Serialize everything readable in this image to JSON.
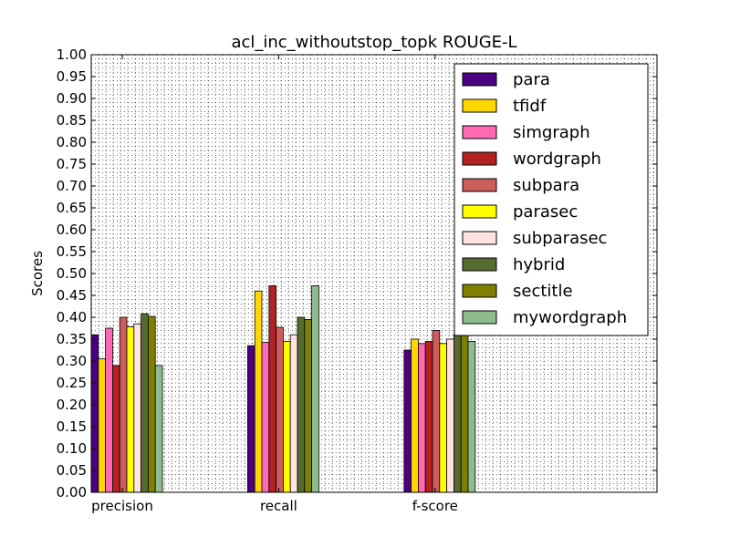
{
  "chart_data": {
    "type": "bar",
    "title": "acl_inc_withoutstop_topk ROUGE-L",
    "xlabel": "",
    "ylabel": "Scores",
    "ylim": [
      0,
      1.0
    ],
    "yticks": [
      "0.00",
      "0.05",
      "0.10",
      "0.15",
      "0.20",
      "0.25",
      "0.30",
      "0.35",
      "0.40",
      "0.45",
      "0.50",
      "0.55",
      "0.60",
      "0.65",
      "0.70",
      "0.75",
      "0.80",
      "0.85",
      "0.90",
      "0.95",
      "1.00"
    ],
    "categories": [
      "precision",
      "recall",
      "f-score"
    ],
    "grid": "on (dotted)",
    "legend_position": "top-right",
    "series": [
      {
        "name": "para",
        "color": "#4b0082",
        "values": [
          0.36,
          0.335,
          0.325
        ]
      },
      {
        "name": "tfidf",
        "color": "#ffd700",
        "values": [
          0.305,
          0.46,
          0.35
        ]
      },
      {
        "name": "simgraph",
        "color": "#ff69b4",
        "values": [
          0.375,
          0.343,
          0.34
        ]
      },
      {
        "name": "wordgraph",
        "color": "#b22222",
        "values": [
          0.29,
          0.472,
          0.345
        ]
      },
      {
        "name": "subpara",
        "color": "#cd5c5c",
        "values": [
          0.4,
          0.377,
          0.37
        ]
      },
      {
        "name": "parasec",
        "color": "#ffff00",
        "values": [
          0.378,
          0.345,
          0.34
        ]
      },
      {
        "name": "subparasec",
        "color": "#ffe4e1",
        "values": [
          0.385,
          0.36,
          0.35
        ]
      },
      {
        "name": "hybrid",
        "color": "#556b2f",
        "values": [
          0.408,
          0.4,
          0.36
        ]
      },
      {
        "name": "sectitle",
        "color": "#808000",
        "values": [
          0.402,
          0.395,
          0.36
        ]
      },
      {
        "name": "mywordgraph",
        "color": "#8fbc8f",
        "values": [
          0.29,
          0.472,
          0.345
        ]
      }
    ]
  }
}
